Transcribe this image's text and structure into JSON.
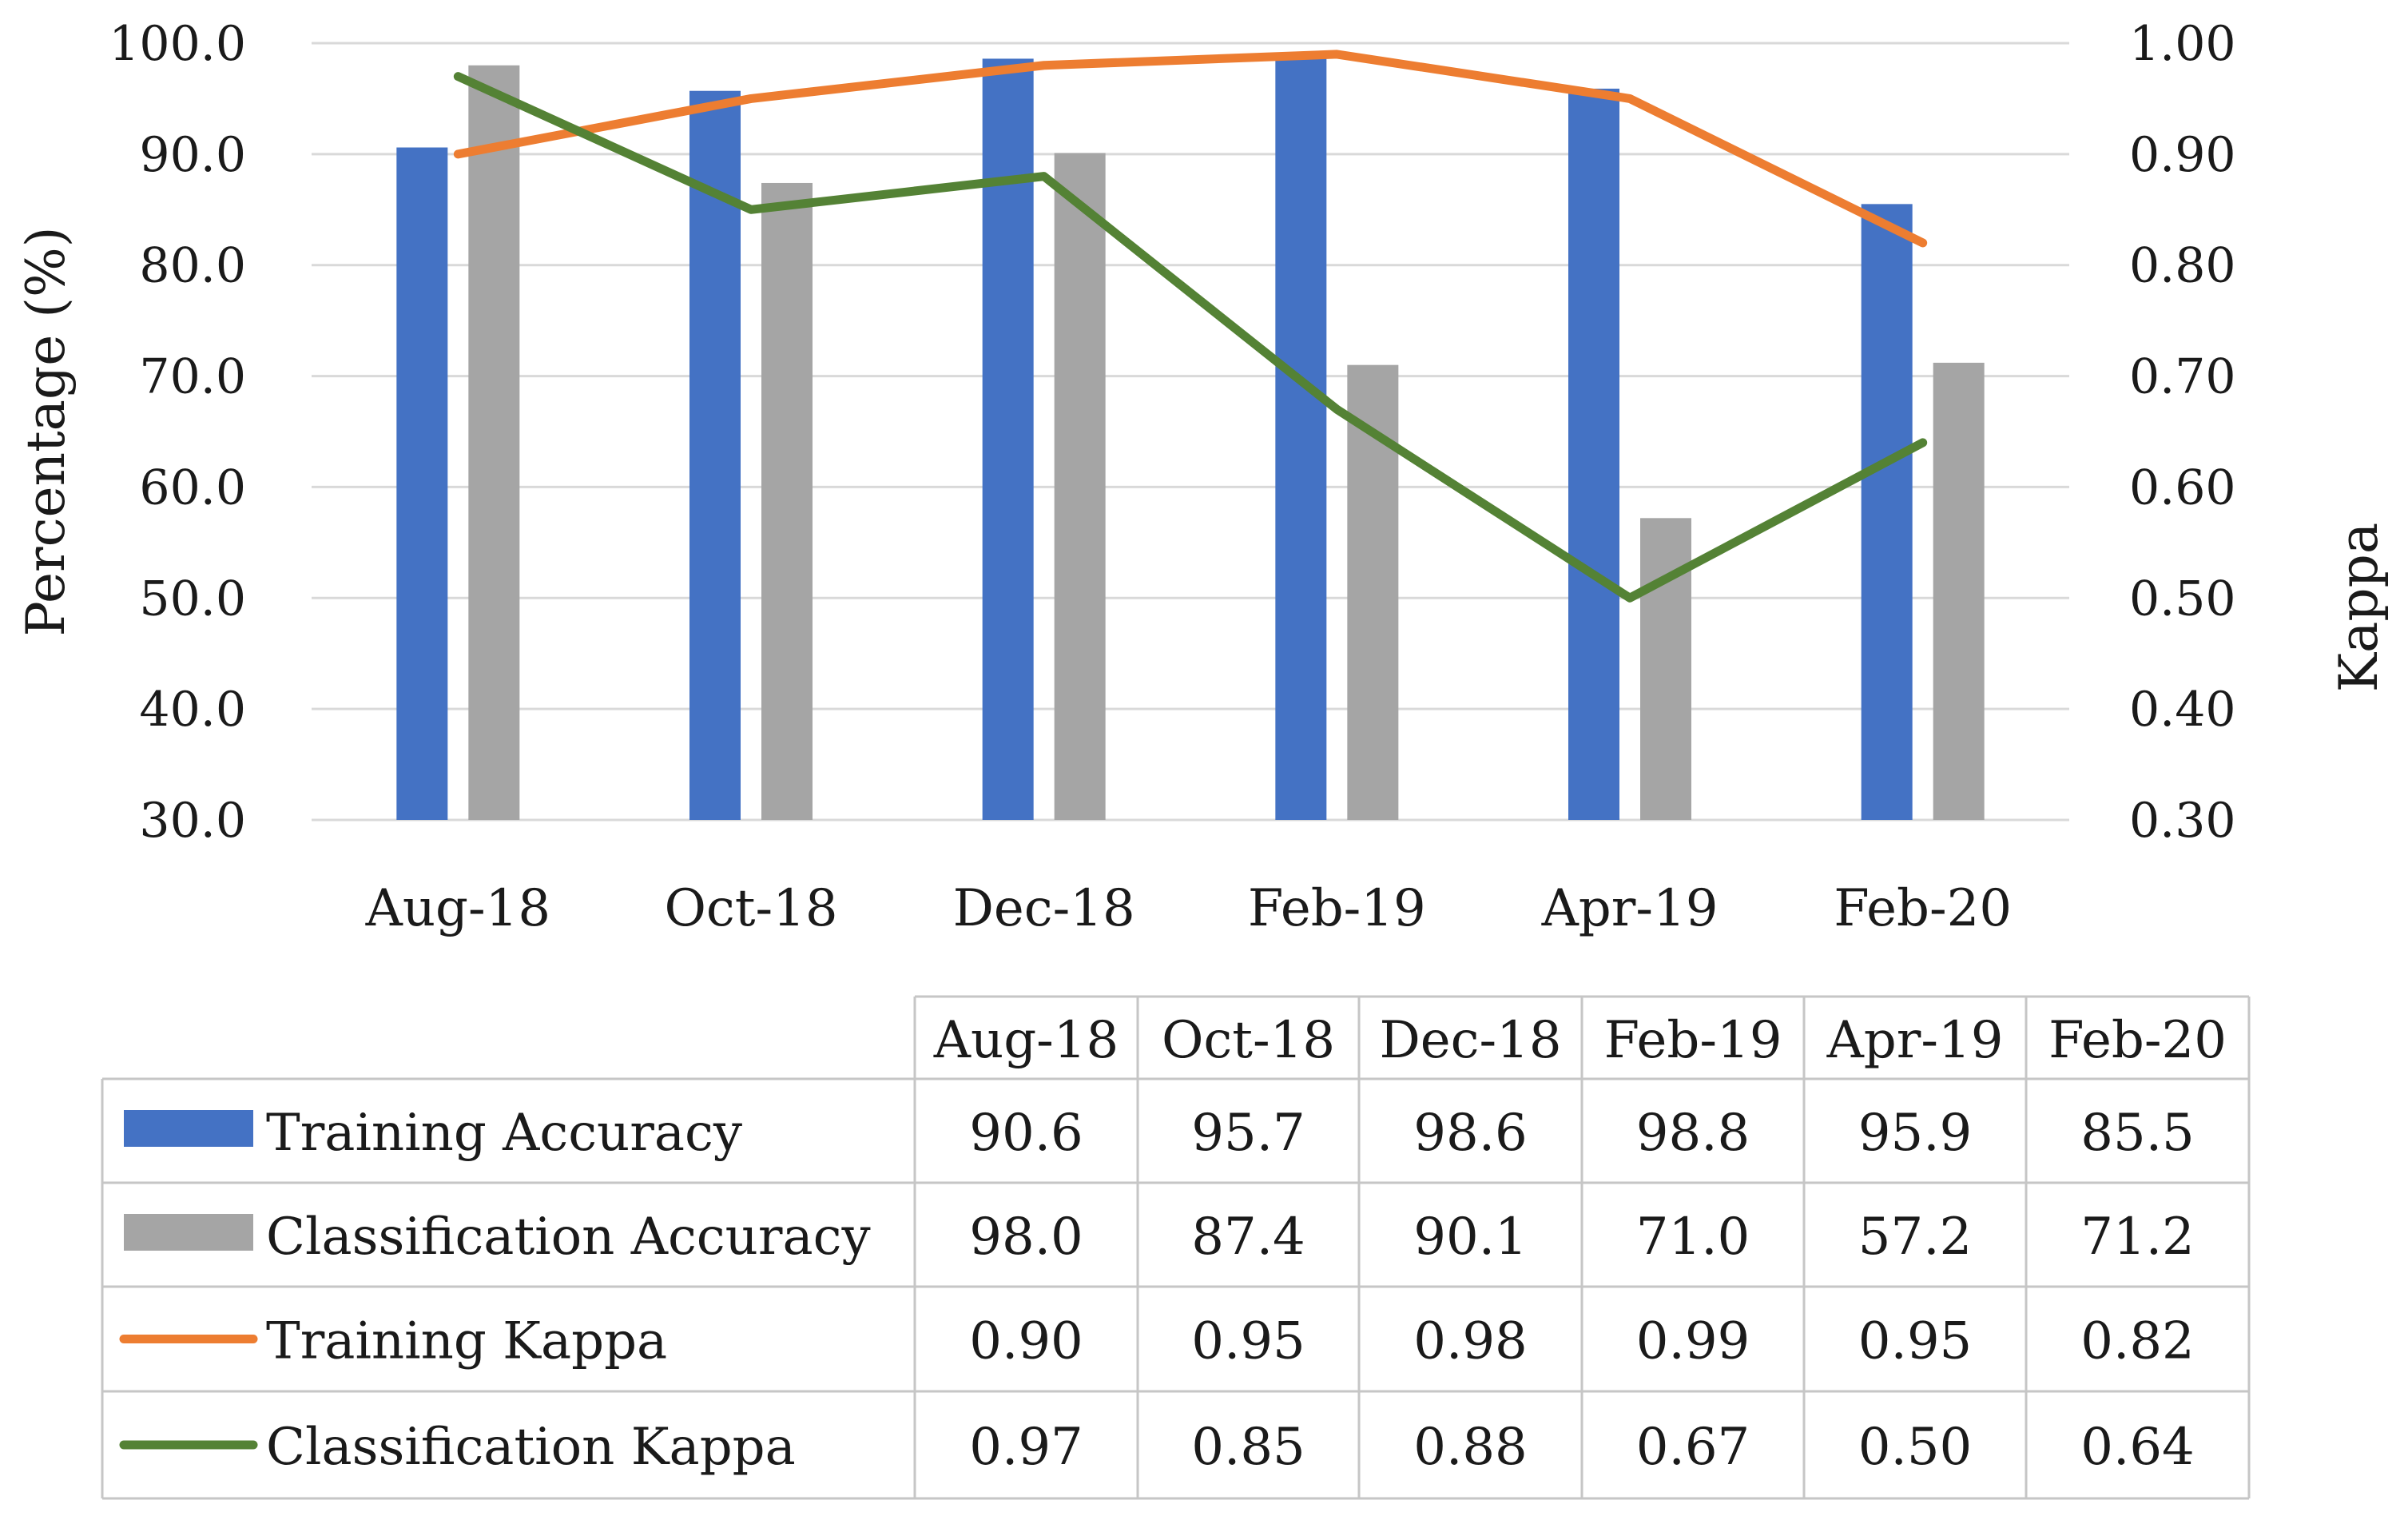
{
  "chart_data": {
    "type": "bar",
    "categories": [
      "Aug-18",
      "Oct-18",
      "Dec-18",
      "Feb-19",
      "Apr-19",
      "Feb-20"
    ],
    "ylabel": "Percentage (%)",
    "y2label": "Kappa",
    "ylim": [
      30,
      100
    ],
    "y2lim": [
      0.3,
      1.0
    ],
    "yticks": [
      "30.0",
      "40.0",
      "50.0",
      "60.0",
      "70.0",
      "80.0",
      "90.0",
      "100.0"
    ],
    "y2ticks": [
      "0.30",
      "0.40",
      "0.50",
      "0.60",
      "0.70",
      "0.80",
      "0.90",
      "1.00"
    ],
    "grid": true,
    "series": [
      {
        "name": "Training Accuracy",
        "kind": "bar",
        "axis": "left",
        "color": "#4472C4",
        "values": [
          90.6,
          95.7,
          98.6,
          98.8,
          95.9,
          85.5
        ],
        "labels": [
          "90.6",
          "95.7",
          "98.6",
          "98.8",
          "95.9",
          "85.5"
        ]
      },
      {
        "name": "Classification Accuracy",
        "kind": "bar",
        "axis": "left",
        "color": "#A5A5A5",
        "values": [
          98.0,
          87.4,
          90.1,
          71.0,
          57.2,
          71.2
        ],
        "labels": [
          "98.0",
          "87.4",
          "90.1",
          "71.0",
          "57.2",
          "71.2"
        ]
      },
      {
        "name": "Training Kappa",
        "kind": "line",
        "axis": "right",
        "color": "#ED7D31",
        "values": [
          0.9,
          0.95,
          0.98,
          0.99,
          0.95,
          0.82
        ],
        "labels": [
          "0.90",
          "0.95",
          "0.98",
          "0.99",
          "0.95",
          "0.82"
        ]
      },
      {
        "name": "Classification Kappa",
        "kind": "line",
        "axis": "right",
        "color": "#548235",
        "values": [
          0.97,
          0.85,
          0.88,
          0.67,
          0.5,
          0.64
        ],
        "labels": [
          "0.97",
          "0.85",
          "0.88",
          "0.67",
          "0.50",
          "0.64"
        ]
      }
    ],
    "legend": "data-table-below"
  }
}
